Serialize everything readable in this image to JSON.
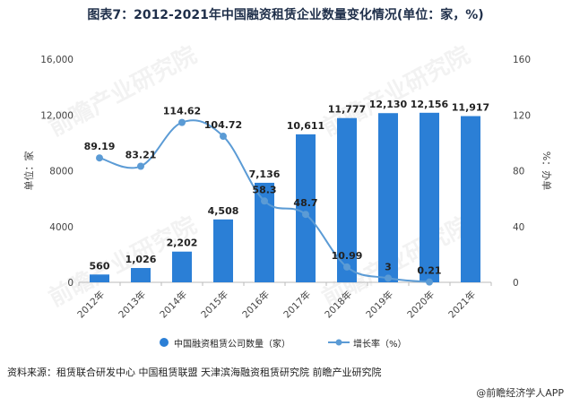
{
  "title": "图表7：2012-2021年中国融资租赁企业数量变化情况(单位：家，%)",
  "source": "资料来源：租赁联合研发中心 中国租赁联盟 天津滨海融资租赁研究院 前瞻产业研究院",
  "footer": "@前瞻经济学人APP",
  "watermark": "前瞻产业研究院",
  "colors": {
    "bar": "#2b7fd6",
    "line": "#5b9bd5",
    "axis": "#999999",
    "text": "#333333"
  },
  "chart_data": {
    "type": "bar",
    "categories": [
      "2012年",
      "2013年",
      "2014年",
      "2015年",
      "2016年",
      "2017年",
      "2018年",
      "2019年",
      "2020年",
      "2021年"
    ],
    "series": [
      {
        "name": "中国融资租赁公司数量（家）",
        "type": "bar",
        "axis": "left",
        "values": [
          560,
          1026,
          2202,
          4508,
          7136,
          10611,
          11777,
          12130,
          12156,
          11917
        ],
        "labels": [
          "560",
          "1,026",
          "2,202",
          "4,508",
          "7,136",
          "10,611",
          "11,777",
          "12,130",
          "12,156",
          "11,917"
        ]
      },
      {
        "name": "增长率（%）",
        "type": "line",
        "axis": "right",
        "values": [
          89.19,
          83.21,
          114.62,
          104.72,
          58.3,
          48.7,
          10.99,
          3,
          0.21,
          null
        ],
        "labels": [
          "89.19",
          "83.21",
          "114.62",
          "104.72",
          "58.3",
          "48.7",
          "10.99",
          "3",
          "0.21",
          ""
        ]
      }
    ],
    "ylabel": "单位：家",
    "y2label": "%：办单",
    "ylim": [
      0,
      16000
    ],
    "y2lim": [
      0,
      160
    ],
    "yticks": [
      "0",
      "4000",
      "8000",
      "12,000",
      "16,000"
    ],
    "y2ticks": [
      "0",
      "40",
      "80",
      "120",
      "160"
    ],
    "legend_position": "bottom",
    "grid": false
  }
}
